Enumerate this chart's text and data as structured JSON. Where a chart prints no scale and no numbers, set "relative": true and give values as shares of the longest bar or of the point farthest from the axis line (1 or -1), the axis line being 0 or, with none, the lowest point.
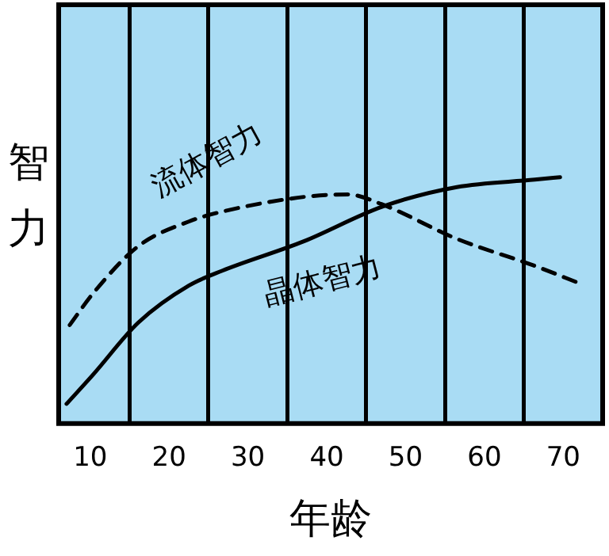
{
  "chart_data": {
    "type": "line",
    "xlabel": "年龄",
    "ylabel": "智力",
    "relative": true,
    "xlim": [
      6,
      75
    ],
    "xticks": [
      10,
      {
        "value": 15,
        "label": null
      },
      20,
      {
        "value": 25,
        "label": null
      },
      30,
      {
        "value": 35,
        "label": null
      },
      40,
      {
        "value": 45,
        "label": null
      },
      50,
      {
        "value": 55,
        "label": null
      },
      60,
      {
        "value": 65,
        "label": null
      },
      70
    ],
    "grid": "x",
    "legend": false,
    "marker": "none",
    "series": [
      {
        "name": "流体智力",
        "color": "#000000",
        "line_style": "dashed",
        "x": [
          7.4,
          10.4,
          16.1,
          22.5,
          26.7,
          37.1,
          42.7,
          47,
          56.5,
          66.4,
          72
        ],
        "values": [
          0.4,
          0.53,
          0.72,
          0.82,
          0.86,
          0.92,
          0.93,
          0.89,
          0.75,
          0.64,
          0.57
        ]
      },
      {
        "name": "晶体智力",
        "color": "#000000",
        "line_style": "solid",
        "x": [
          7,
          10.4,
          16.1,
          22.5,
          26.7,
          37.1,
          47,
          56.5,
          66.4,
          69.6
        ],
        "values": [
          0.08,
          0.2,
          0.41,
          0.56,
          0.62,
          0.74,
          0.88,
          0.96,
          0.99,
          1
        ]
      }
    ]
  }
}
